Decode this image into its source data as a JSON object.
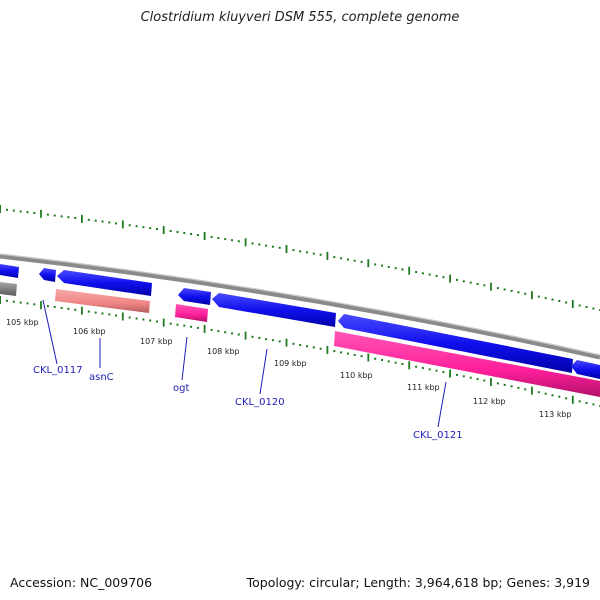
{
  "title": "Clostridium kluyveri DSM 555, complete genome",
  "footer": {
    "accession": "Accession: NC_009706",
    "topology": "Topology: circular; Length: 3,964,618 bp; Genes: 3,919"
  },
  "colors": {
    "forward_cds": "#1010ee",
    "gene": "#ff1f9a",
    "gene_light": "#ef8484",
    "backbone": "#8a8a8a",
    "tick": "#1f7a1f",
    "label": "#1d1db8"
  },
  "scale_labels": [
    "105 kbp",
    "106 kbp",
    "107 kbp",
    "108 kbp",
    "109 kbp",
    "110 kbp",
    "111 kbp",
    "112 kbp",
    "113 kbp"
  ],
  "gene_labels": [
    "CKL_0117",
    "asnC",
    "ogt",
    "CKL_0120",
    "CKL_0121"
  ]
}
